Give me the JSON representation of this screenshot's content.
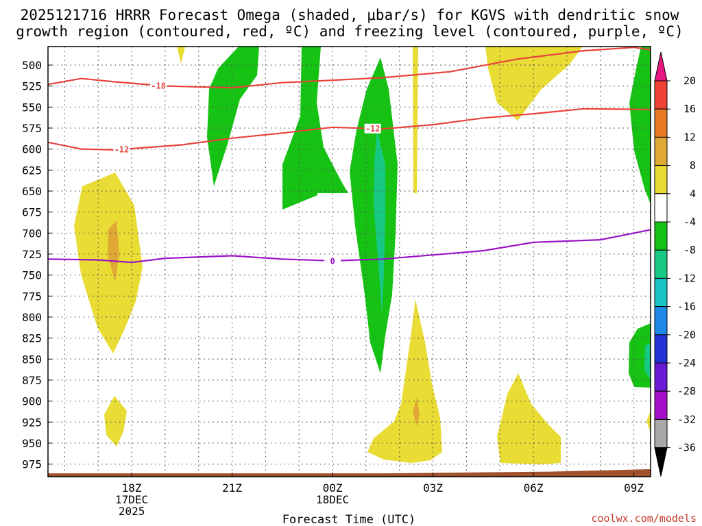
{
  "chart_data": {
    "type": "time-height cross-section",
    "title_line1": "2025121716 HRRR Forecast Omega (shaded, μbar/s) for KGVS with dendritic snow",
    "title_line2": "growth region (contoured, red, ºC) and freezing level (contoured, purple, ºC)",
    "xlabel": "Forecast Time (UTC)",
    "x_range_hours": [
      -2.5,
      15.5
    ],
    "y_range_mb": [
      478,
      990
    ],
    "y_ticks": [
      "500",
      "525",
      "550",
      "575",
      "600",
      "625",
      "650",
      "675",
      "700",
      "725",
      "750",
      "775",
      "800",
      "825",
      "850",
      "875",
      "900",
      "925",
      "950",
      "975"
    ],
    "x_ticks": [
      {
        "hour": 0,
        "lines": [
          "18Z",
          "17DEC",
          "2025"
        ]
      },
      {
        "hour": 3,
        "lines": [
          "21Z"
        ]
      },
      {
        "hour": 6,
        "lines": [
          "00Z",
          "18DEC"
        ]
      },
      {
        "hour": 9,
        "lines": [
          "03Z"
        ]
      },
      {
        "hour": 12,
        "lines": [
          "06Z"
        ]
      },
      {
        "hour": 15,
        "lines": [
          "09Z"
        ]
      }
    ],
    "colorbar": {
      "labels": [
        "20",
        "16",
        "12",
        "8",
        "4",
        "-4",
        "-8",
        "-12",
        "-16",
        "-20",
        "-24",
        "-28",
        "-32",
        "-36"
      ],
      "bands": [
        {
          "range": "above 20",
          "color": "#e8167f"
        },
        {
          "range": "16 to 20",
          "color": "#ef4435"
        },
        {
          "range": "12 to 16",
          "color": "#e87a22"
        },
        {
          "range": "8 to 12",
          "color": "#e0a834"
        },
        {
          "range": "4 to 8",
          "color": "#e8dc35"
        },
        {
          "range": "-4 to 4",
          "color": "#ffffff"
        },
        {
          "range": "-8 to -4",
          "color": "#16c314"
        },
        {
          "range": "-12 to -8",
          "color": "#18c985"
        },
        {
          "range": "-16 to -12",
          "color": "#19c4c4"
        },
        {
          "range": "-20 to -16",
          "color": "#1d88e6"
        },
        {
          "range": "-24 to -20",
          "color": "#2532d6"
        },
        {
          "range": "-28 to -24",
          "color": "#6a1ad4"
        },
        {
          "range": "-32 to -28",
          "color": "#a40ec9"
        },
        {
          "range": "-36 to -32",
          "color": "#a8a8a8"
        },
        {
          "range": "below -36",
          "color": "#000000"
        }
      ]
    },
    "contours": [
      {
        "name": "-18C isotherm",
        "label": "-18",
        "color": "#e8423a",
        "points": [
          [
            -2.5,
            523
          ],
          [
            -1.5,
            516
          ],
          [
            -0.5,
            520
          ],
          [
            1.0,
            525
          ],
          [
            3.0,
            527
          ],
          [
            4.5,
            521
          ],
          [
            6.0,
            518
          ],
          [
            7.5,
            515
          ],
          [
            9.5,
            508
          ],
          [
            11.5,
            493
          ],
          [
            13.5,
            483
          ],
          [
            15.0,
            479
          ],
          [
            15.5,
            482
          ]
        ]
      },
      {
        "name": "-12C isotherm",
        "label": "-12",
        "color": "#e8423a",
        "points": [
          [
            -2.5,
            592
          ],
          [
            -1.5,
            600
          ],
          [
            -0.5,
            601
          ],
          [
            1.5,
            595
          ],
          [
            3.0,
            587
          ],
          [
            4.5,
            581
          ],
          [
            6.0,
            574
          ],
          [
            7.5,
            576
          ],
          [
            9.0,
            571
          ],
          [
            10.5,
            563
          ],
          [
            12.0,
            558
          ],
          [
            13.5,
            552
          ],
          [
            15.5,
            553
          ]
        ]
      },
      {
        "name": "freezing level",
        "label": "0",
        "color": "#9a12c8",
        "points": [
          [
            -2.5,
            731
          ],
          [
            -1.0,
            732
          ],
          [
            0.0,
            735
          ],
          [
            1.0,
            730
          ],
          [
            3.0,
            727
          ],
          [
            4.5,
            731
          ],
          [
            6.0,
            733
          ],
          [
            7.5,
            731
          ],
          [
            9.0,
            726
          ],
          [
            10.5,
            721
          ],
          [
            12.0,
            711
          ],
          [
            14.0,
            708
          ],
          [
            15.5,
            696
          ]
        ]
      }
    ],
    "terrain_color": "#a0522d",
    "credit": "coolwx.com/models"
  }
}
